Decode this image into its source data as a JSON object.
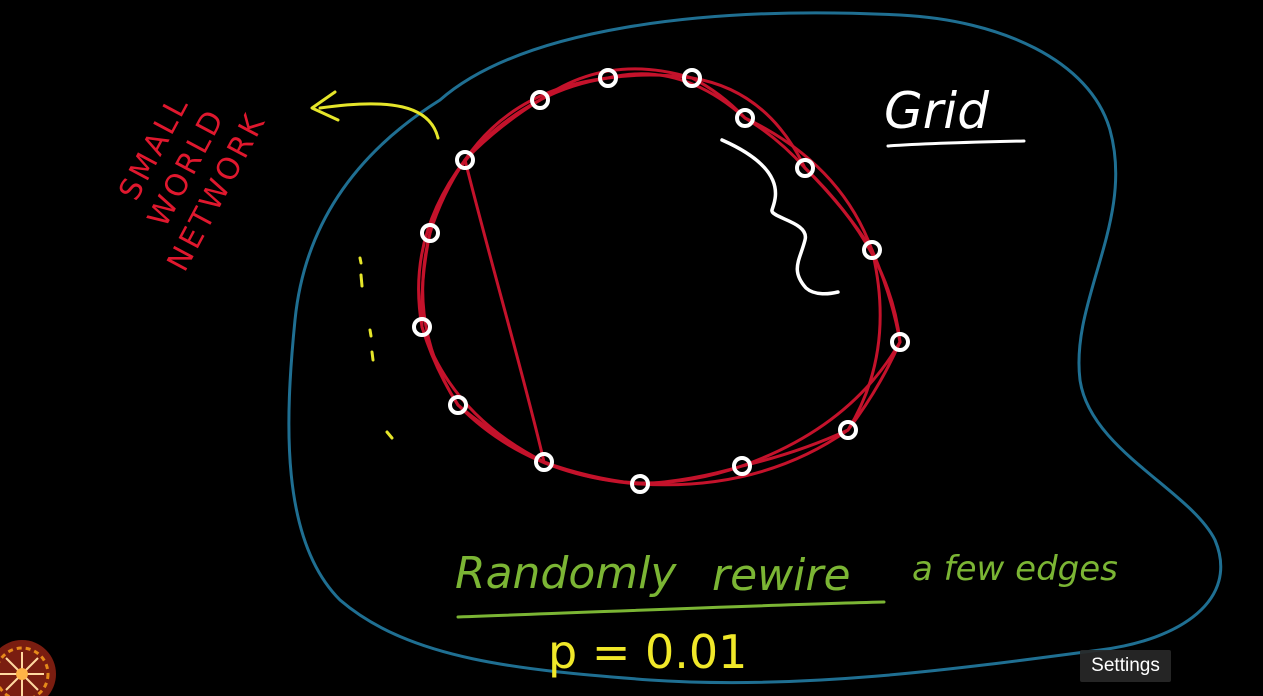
{
  "labels": {
    "network_name": [
      "SMALL",
      "WORLD",
      "NETWORK"
    ],
    "grid": "Grid",
    "randomly": "Randomly",
    "rewire": "rewire",
    "tail": "a few edges",
    "probability": "p = 0.01"
  },
  "player": {
    "tooltip": "Settings"
  },
  "colors": {
    "background": "#000000",
    "blob_outline": "#1f6f92",
    "ring_edges": "#c4122b",
    "nodes": "#ffffff",
    "network_label": "#e0182e",
    "arrow": "#e6e62a",
    "handwriting_green": "#7bb534",
    "probability": "#f0e829",
    "dots": "#e6e62a",
    "brace": "#ffffff"
  }
}
